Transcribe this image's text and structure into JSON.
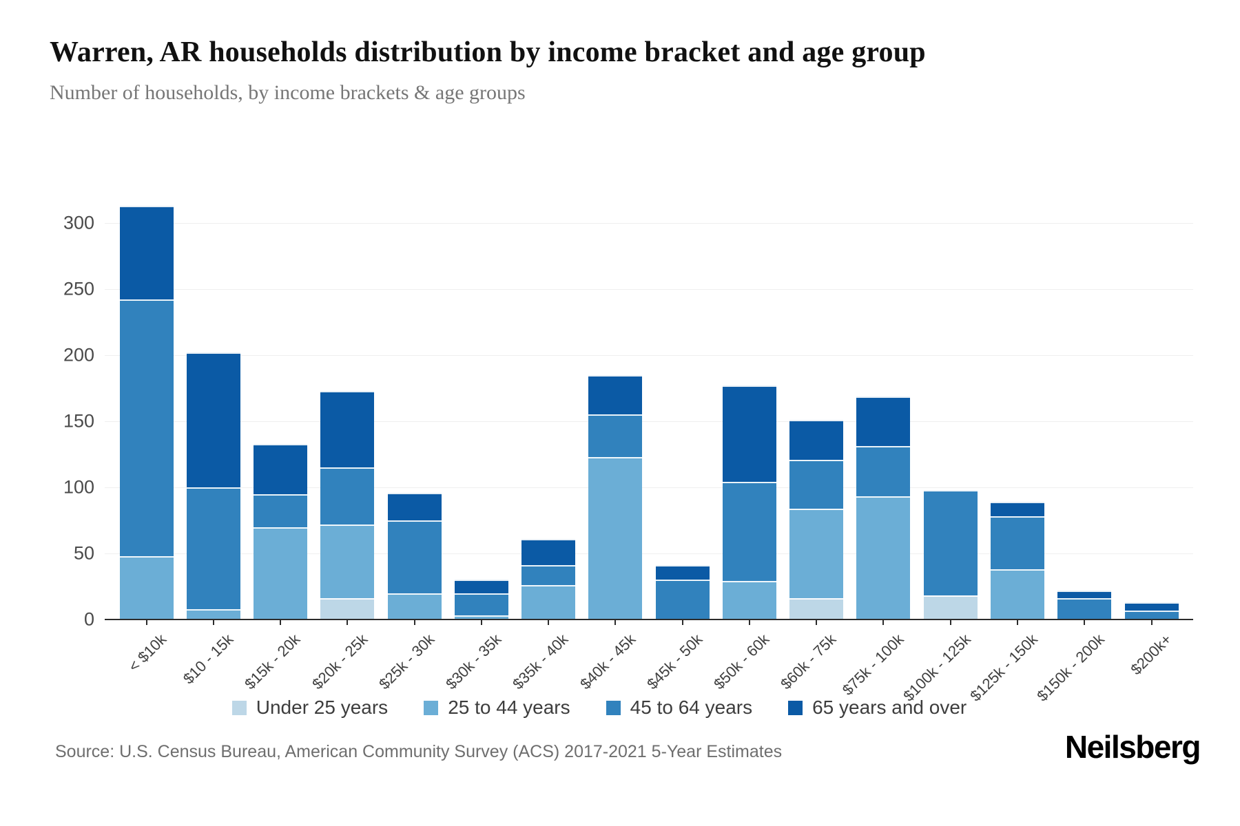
{
  "header": {
    "title": "Warren, AR households distribution by income bracket and age group",
    "subtitle": "Number of households, by income brackets & age groups"
  },
  "footer": {
    "source": "Source: U.S. Census Bureau, American Community Survey (ACS) 2017-2021 5-Year Estimates",
    "brand": "Neilsberg"
  },
  "colors": {
    "under25": "#bdd7e7",
    "age25_44": "#6baed6",
    "age45_64": "#3182bd",
    "age65over": "#0b5aa5",
    "axis": "#2b2b2b",
    "grid": "#efefef"
  },
  "chart_data": {
    "type": "bar",
    "stacked": true,
    "title": "Warren, AR households distribution by income bracket and age group",
    "subtitle": "Number of households, by income brackets & age groups",
    "xlabel": "",
    "ylabel": "",
    "ylim": [
      0,
      300
    ],
    "yticks": [
      0,
      50,
      100,
      150,
      200,
      250,
      300
    ],
    "grid": true,
    "legend_position": "bottom",
    "categories": [
      "< $10k",
      "$10 - 15k",
      "$15k - 20k",
      "$20k - 25k",
      "$25k - 30k",
      "$30k - 35k",
      "$35k - 40k",
      "$40k - 45k",
      "$45k - 50k",
      "$50k - 60k",
      "$60k - 75k",
      "$75k - 100k",
      "$100k - 125k",
      "$125k - 150k",
      "$150k - 200k",
      "$200k+"
    ],
    "series": [
      {
        "name": "Under 25 years",
        "color_key": "under25",
        "values": [
          0,
          0,
          0,
          16,
          0,
          0,
          0,
          0,
          0,
          0,
          16,
          0,
          18,
          0,
          0,
          0
        ]
      },
      {
        "name": "25 to 44 years",
        "color_key": "age25_44",
        "values": [
          48,
          8,
          70,
          56,
          20,
          3,
          26,
          123,
          0,
          29,
          68,
          93,
          0,
          38,
          0,
          0
        ]
      },
      {
        "name": "45 to 64 years",
        "color_key": "age45_64",
        "values": [
          194,
          92,
          25,
          43,
          55,
          17,
          15,
          32,
          30,
          75,
          37,
          38,
          80,
          40,
          16,
          7
        ]
      },
      {
        "name": "65 years and over",
        "color_key": "age65over",
        "values": [
          71,
          102,
          38,
          58,
          21,
          10,
          20,
          30,
          11,
          73,
          30,
          38,
          0,
          11,
          6,
          6
        ]
      }
    ],
    "totals": [
      313,
      202,
      133,
      173,
      96,
      30,
      61,
      185,
      41,
      177,
      151,
      169,
      98,
      89,
      22,
      13
    ]
  }
}
